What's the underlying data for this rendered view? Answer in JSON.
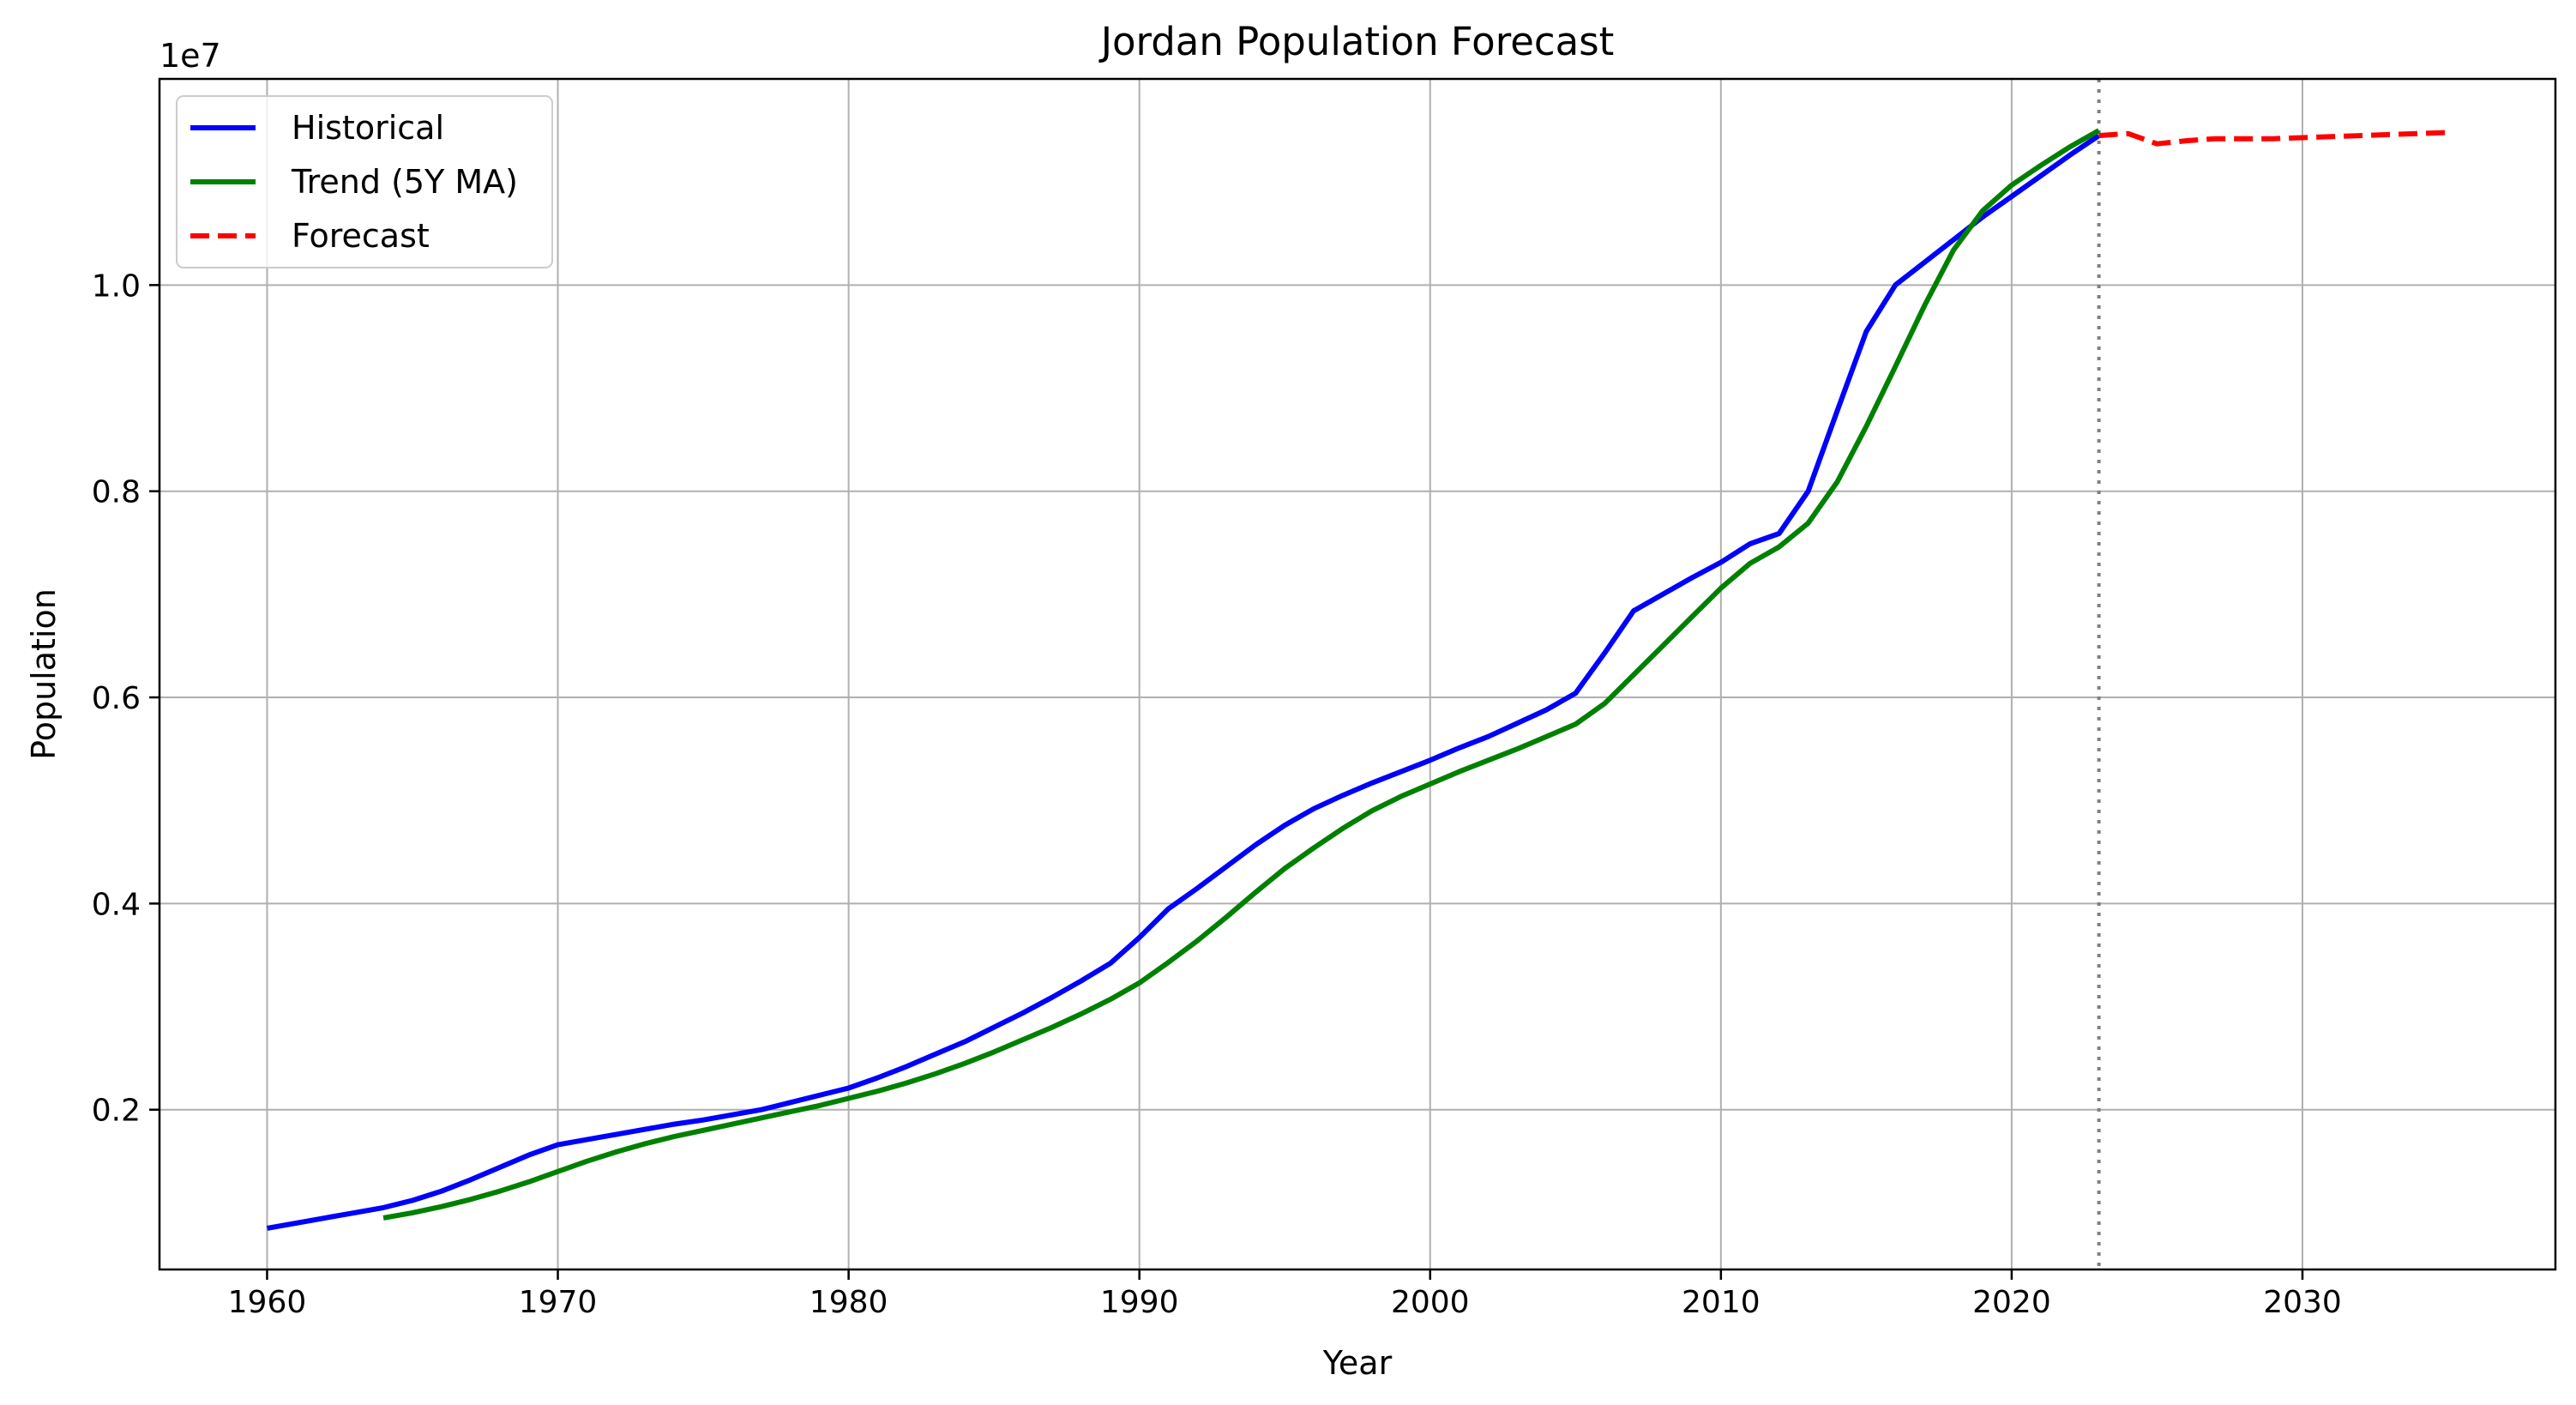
{
  "chart_data": {
    "type": "line",
    "title": "Jordan Population Forecast",
    "xlabel": "Year",
    "ylabel": "Population",
    "y_scale_label": "1e7",
    "xlim": [
      1956.3,
      2038.7
    ],
    "ylim": [
      0.045,
      1.2
    ],
    "x_ticks": [
      1960,
      1970,
      1980,
      1990,
      2000,
      2010,
      2020,
      2030
    ],
    "x_tick_labels": [
      "1960",
      "1970",
      "1980",
      "1990",
      "2000",
      "2010",
      "2020",
      "2030"
    ],
    "y_ticks": [
      0.2,
      0.4,
      0.6,
      0.8,
      1.0
    ],
    "y_tick_labels": [
      "0.2",
      "0.4",
      "0.6",
      "0.8",
      "1.0"
    ],
    "grid": true,
    "legend_position": "top-left",
    "forecast_start_marker_year": 2023,
    "series": [
      {
        "name": "Historical",
        "color": "#0000ff",
        "style": "solid",
        "x": [
          1960,
          1961,
          1962,
          1963,
          1964,
          1965,
          1966,
          1967,
          1968,
          1969,
          1970,
          1971,
          1972,
          1973,
          1974,
          1975,
          1976,
          1977,
          1978,
          1979,
          1980,
          1981,
          1982,
          1983,
          1984,
          1985,
          1986,
          1987,
          1988,
          1989,
          1990,
          1991,
          1992,
          1993,
          1994,
          1995,
          1996,
          1997,
          1998,
          1999,
          2000,
          2001,
          2002,
          2003,
          2004,
          2005,
          2006,
          2007,
          2008,
          2009,
          2010,
          2011,
          2012,
          2013,
          2014,
          2015,
          2016,
          2017,
          2018,
          2019,
          2020,
          2021,
          2022,
          2023
        ],
        "values": [
          0.085,
          0.09,
          0.095,
          0.1,
          0.105,
          0.112,
          0.121,
          0.132,
          0.144,
          0.156,
          0.166,
          0.171,
          0.176,
          0.181,
          0.186,
          0.19,
          0.195,
          0.2,
          0.207,
          0.214,
          0.221,
          0.231,
          0.242,
          0.254,
          0.266,
          0.28,
          0.294,
          0.309,
          0.325,
          0.342,
          0.367,
          0.395,
          0.415,
          0.436,
          0.457,
          0.476,
          0.492,
          0.505,
          0.517,
          0.528,
          0.539,
          0.551,
          0.562,
          0.575,
          0.588,
          0.604,
          0.643,
          0.684,
          0.7,
          0.716,
          0.731,
          0.749,
          0.759,
          0.8,
          0.878,
          0.955,
          1.0,
          1.022,
          1.044,
          1.066,
          1.086,
          1.106,
          1.126,
          1.145
        ]
      },
      {
        "name": "Trend (5Y MA)",
        "color": "#008000",
        "style": "solid",
        "x": [
          1964,
          1965,
          1966,
          1967,
          1968,
          1969,
          1970,
          1971,
          1972,
          1973,
          1974,
          1975,
          1976,
          1977,
          1978,
          1979,
          1980,
          1981,
          1982,
          1983,
          1984,
          1985,
          1986,
          1987,
          1988,
          1989,
          1990,
          1991,
          1992,
          1993,
          1994,
          1995,
          1996,
          1997,
          1998,
          1999,
          2000,
          2001,
          2002,
          2003,
          2004,
          2005,
          2006,
          2007,
          2008,
          2009,
          2010,
          2011,
          2012,
          2013,
          2014,
          2015,
          2016,
          2017,
          2018,
          2019,
          2020,
          2021,
          2022,
          2023
        ],
        "values": [
          0.095,
          0.1,
          0.106,
          0.113,
          0.121,
          0.13,
          0.14,
          0.15,
          0.159,
          0.167,
          0.174,
          0.18,
          0.186,
          0.192,
          0.198,
          0.204,
          0.211,
          0.218,
          0.226,
          0.235,
          0.245,
          0.256,
          0.268,
          0.28,
          0.293,
          0.307,
          0.323,
          0.343,
          0.364,
          0.387,
          0.411,
          0.434,
          0.454,
          0.473,
          0.49,
          0.504,
          0.516,
          0.528,
          0.539,
          0.55,
          0.562,
          0.574,
          0.594,
          0.622,
          0.65,
          0.678,
          0.706,
          0.73,
          0.746,
          0.769,
          0.809,
          0.863,
          0.921,
          0.98,
          1.034,
          1.072,
          1.097,
          1.116,
          1.134,
          1.15
        ]
      },
      {
        "name": "Forecast",
        "color": "#ff0000",
        "style": "dashed",
        "x": [
          2023,
          2024,
          2025,
          2026,
          2027,
          2028,
          2029,
          2030,
          2031,
          2032,
          2033,
          2034,
          2035
        ],
        "values": [
          1.145,
          1.147,
          1.137,
          1.14,
          1.142,
          1.142,
          1.142,
          1.143,
          1.144,
          1.145,
          1.146,
          1.147,
          1.148
        ]
      }
    ]
  }
}
